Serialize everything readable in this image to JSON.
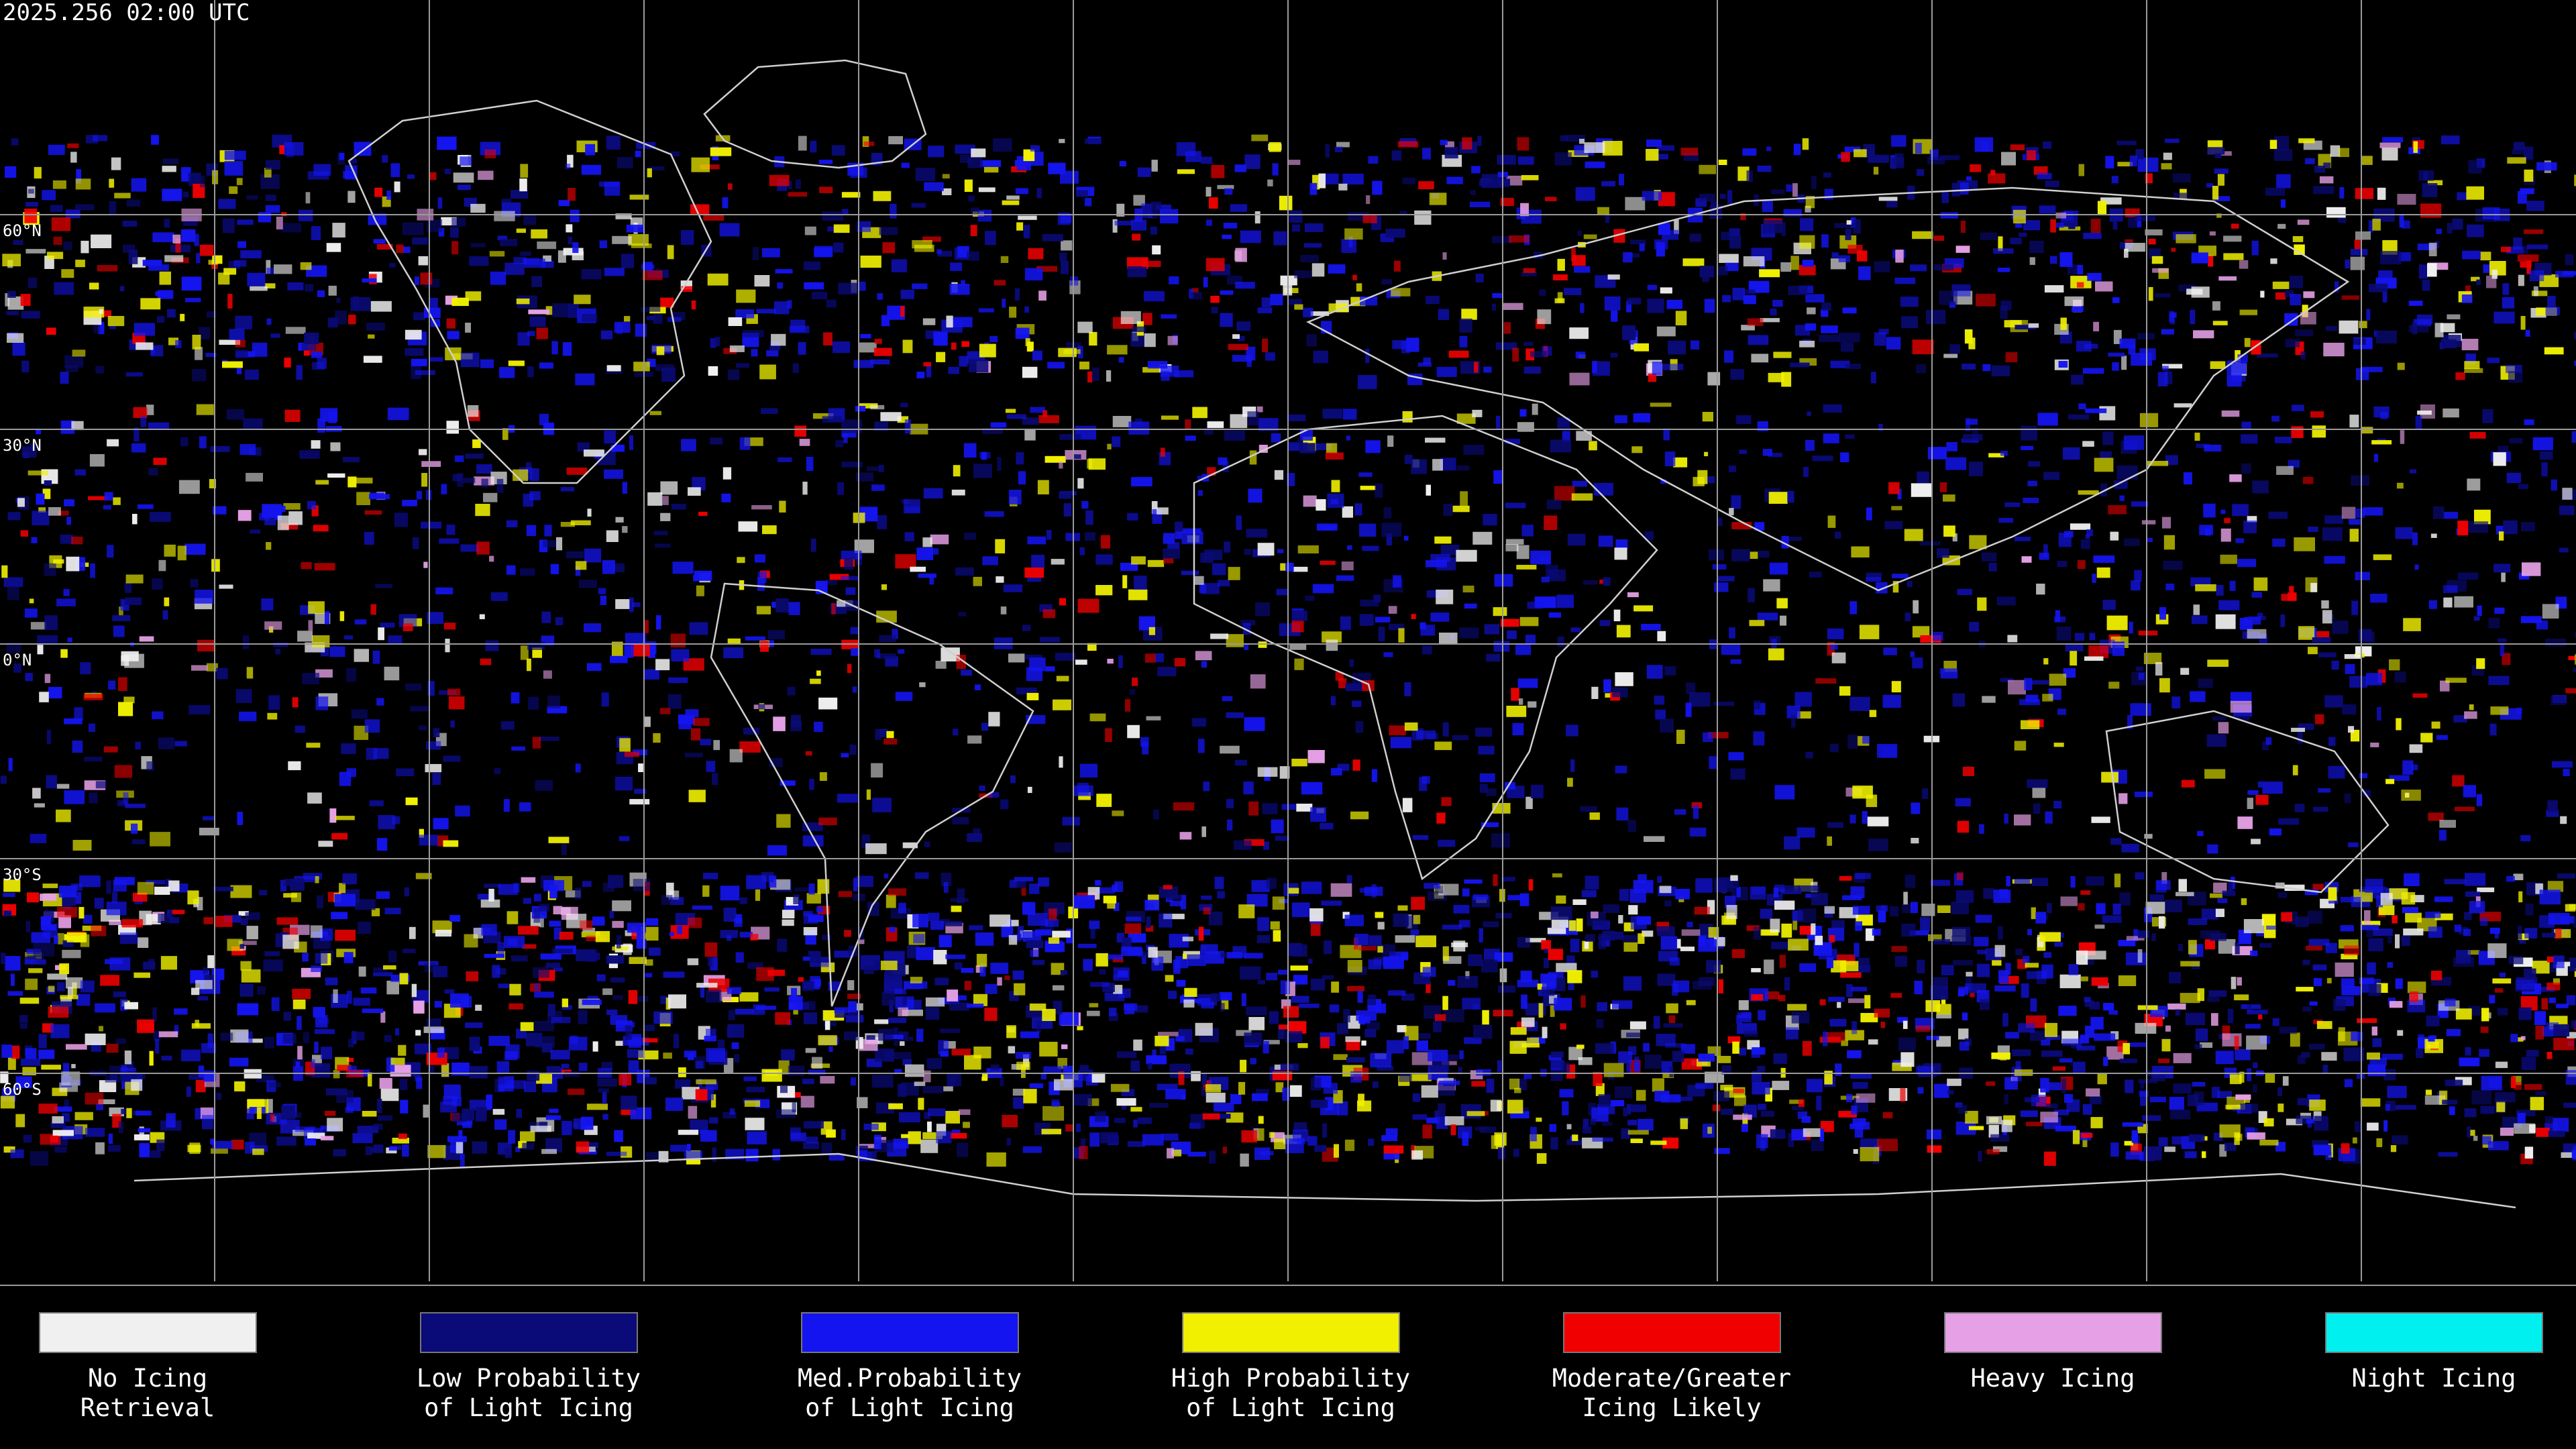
{
  "header": {
    "timestamp": "2025.256 02:00 UTC"
  },
  "map": {
    "lat_labels": [
      "60°N",
      "30°N",
      "0°N",
      "30°S",
      "60°S"
    ]
  },
  "legend": {
    "items": [
      {
        "lines": [
          "No Icing",
          "Retrieval"
        ],
        "color": "#f0f0f0"
      },
      {
        "lines": [
          "Low Probability",
          "of Light Icing"
        ],
        "color": "#0a0a78"
      },
      {
        "lines": [
          "Med.Probability",
          "of Light Icing"
        ],
        "color": "#1414f0"
      },
      {
        "lines": [
          "High Probability",
          "of Light Icing"
        ],
        "color": "#f0f000"
      },
      {
        "lines": [
          "Moderate/Greater",
          "Icing Likely"
        ],
        "color": "#f00000"
      },
      {
        "lines": [
          "Heavy Icing"
        ],
        "color": "#e6a0e6"
      },
      {
        "lines": [
          "Night Icing"
        ],
        "color": "#00f0f0"
      }
    ]
  }
}
